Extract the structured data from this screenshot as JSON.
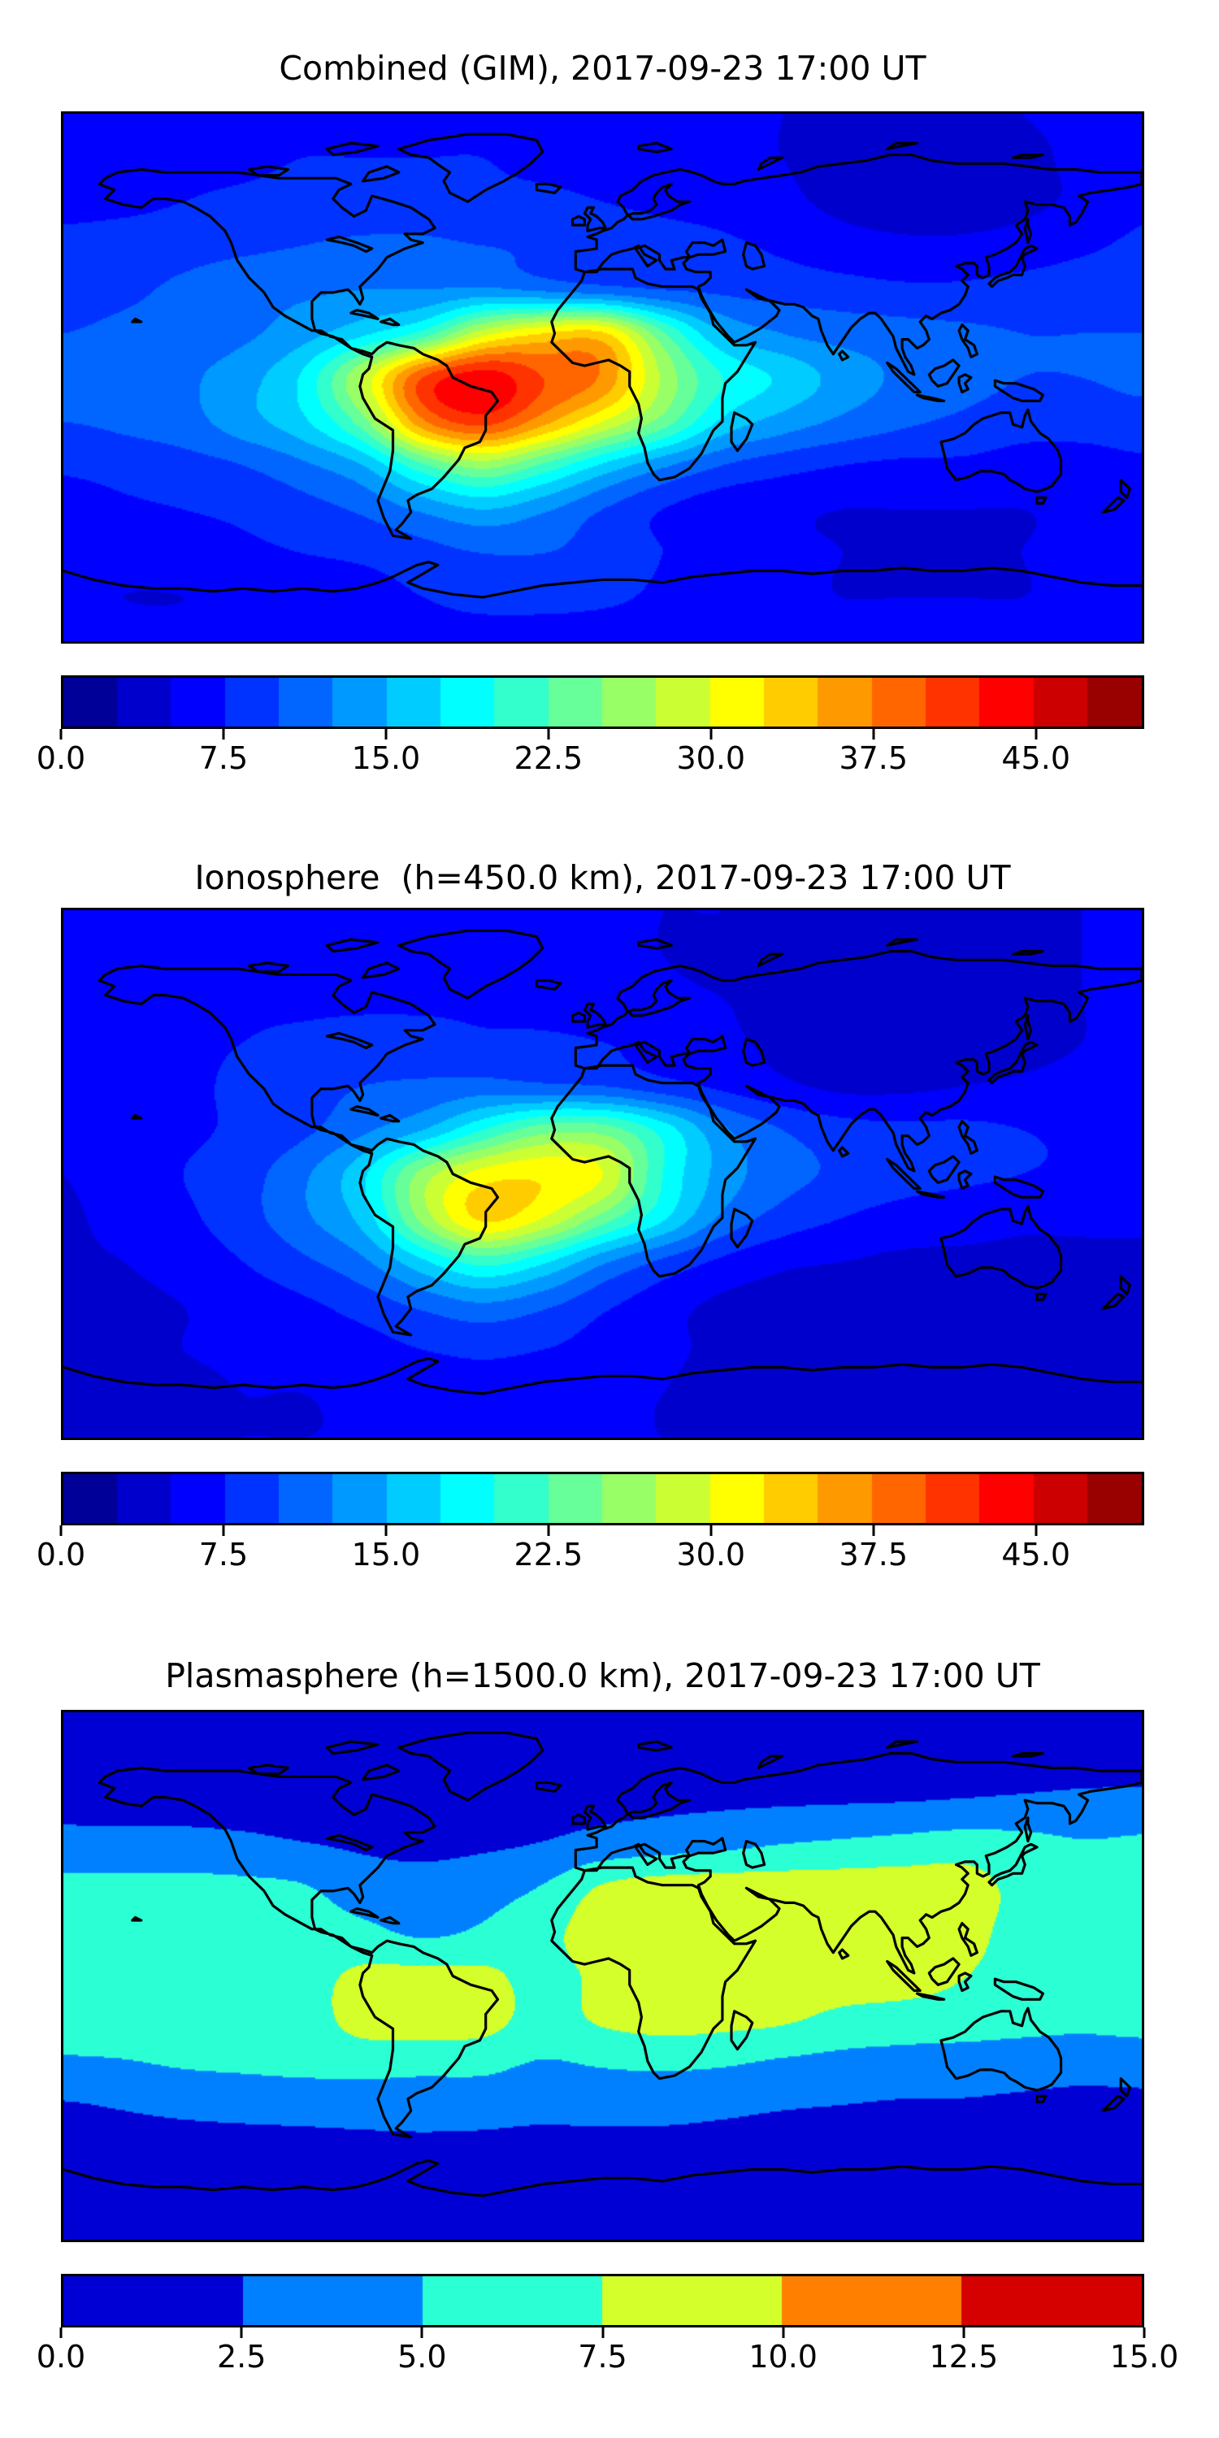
{
  "figure": {
    "background": "#ffffff",
    "panel_count": 3,
    "coastline_color": "#000000",
    "border_color": "#000000"
  },
  "chart_data": [
    {
      "type": "heatmap",
      "subtype": "filled-contour-world-map",
      "title": "Combined (GIM), 2017-09-23 17:00 UT",
      "projection": "equirectangular",
      "lon_range": [
        -180,
        180
      ],
      "lat_range": [
        -90,
        90
      ],
      "colormap": "jet",
      "vmin": 0,
      "vmax": 50,
      "contour_step": 2.5,
      "legend_position": "bottom-colorbar",
      "colorbar_ticks": [
        "0.0",
        "7.5",
        "15.0",
        "22.5",
        "30.0",
        "37.5",
        "45.0"
      ],
      "colorbar_tick_values": [
        0,
        7.5,
        15,
        22.5,
        30,
        37.5,
        45
      ],
      "grid": {
        "lons": [
          -180,
          -160,
          -140,
          -120,
          -100,
          -80,
          -60,
          -40,
          -20,
          0,
          20,
          40,
          60,
          80,
          100,
          120,
          140,
          160,
          180
        ],
        "lats": [
          90,
          75,
          60,
          45,
          30,
          15,
          0,
          -15,
          -30,
          -45,
          -60,
          -75,
          -90
        ],
        "values": [
          [
            6.5,
            6.5,
            6.5,
            7,
            7,
            7,
            7,
            7,
            7,
            6.5,
            6,
            5.5,
            5,
            4.5,
            4.5,
            4.5,
            5,
            5.5,
            6.5
          ],
          [
            6.5,
            6.5,
            7,
            7,
            7.5,
            7.5,
            7.5,
            7.5,
            7,
            6.5,
            6,
            5.5,
            5,
            4.5,
            4,
            4,
            4.5,
            5.5,
            6.5
          ],
          [
            7,
            7,
            7.5,
            8,
            8.5,
            8.5,
            8.5,
            8,
            8,
            7.5,
            7,
            6.5,
            5.5,
            4.5,
            4,
            4,
            4.5,
            5.5,
            7
          ],
          [
            8,
            8.5,
            9,
            9.5,
            10,
            10.5,
            10.5,
            10,
            9.5,
            9,
            8.5,
            8,
            7,
            6,
            5.5,
            5.5,
            6,
            7,
            8
          ],
          [
            9,
            9.5,
            10.5,
            11.5,
            12,
            12.5,
            12.5,
            13,
            12,
            11,
            10,
            9.5,
            9,
            8.5,
            8,
            8,
            8.5,
            9,
            9
          ],
          [
            10,
            10.5,
            11,
            12,
            14,
            17,
            21,
            29,
            32.5,
            33,
            23,
            15,
            12.5,
            11.5,
            11,
            10.5,
            10,
            10,
            10
          ],
          [
            11,
            11,
            12,
            14,
            18,
            28,
            40,
            44,
            40,
            37,
            27,
            20,
            17,
            14,
            12,
            11,
            10,
            10,
            10.5
          ],
          [
            10,
            10.5,
            11.5,
            14,
            17,
            24,
            37,
            41,
            36,
            30,
            24,
            17,
            14,
            12,
            10.5,
            9.5,
            8.5,
            8.5,
            9
          ],
          [
            8,
            8.5,
            9,
            10,
            12,
            15,
            22,
            26,
            22,
            17,
            13,
            10,
            8.5,
            7.5,
            7,
            7,
            6.5,
            6.5,
            7
          ],
          [
            6,
            7,
            7.5,
            8,
            9,
            10.5,
            13,
            15,
            13,
            10,
            7.5,
            6,
            5.5,
            5,
            5,
            5,
            5,
            5.5,
            6
          ],
          [
            5.5,
            6,
            6.5,
            7,
            7.5,
            8,
            9,
            10,
            10,
            9,
            7.5,
            6.5,
            5.5,
            5,
            4.5,
            4.5,
            5,
            5.5,
            5.5
          ],
          [
            5.5,
            5,
            5,
            5.5,
            6,
            6.5,
            7.5,
            8.5,
            8.5,
            8,
            7,
            6,
            5.5,
            5,
            5,
            5,
            5,
            5.5,
            5.5
          ],
          [
            6,
            6,
            6,
            6,
            6,
            6,
            6,
            6,
            6,
            6,
            6,
            6,
            6,
            6,
            6,
            6,
            6,
            6,
            6
          ]
        ]
      }
    },
    {
      "type": "heatmap",
      "subtype": "filled-contour-world-map",
      "title": "Ionosphere  (h=450.0 km), 2017-09-23 17:00 UT",
      "projection": "equirectangular",
      "lon_range": [
        -180,
        180
      ],
      "lat_range": [
        -90,
        90
      ],
      "colormap": "jet",
      "vmin": 0,
      "vmax": 50,
      "contour_step": 2.5,
      "legend_position": "bottom-colorbar",
      "colorbar_ticks": [
        "0.0",
        "7.5",
        "15.0",
        "22.5",
        "30.0",
        "37.5",
        "45.0"
      ],
      "colorbar_tick_values": [
        0,
        7.5,
        15,
        22.5,
        30,
        37.5,
        45
      ],
      "grid": {
        "lons": [
          -180,
          -160,
          -140,
          -120,
          -100,
          -80,
          -60,
          -40,
          -20,
          0,
          20,
          40,
          60,
          80,
          100,
          120,
          140,
          160,
          180
        ],
        "lats": [
          90,
          75,
          60,
          45,
          30,
          15,
          0,
          -15,
          -30,
          -45,
          -60,
          -75,
          -90
        ],
        "values": [
          [
            5.5,
            5.5,
            5.5,
            5.5,
            6,
            6,
            6,
            6,
            5.5,
            5.5,
            5,
            5,
            4.5,
            4.5,
            4.5,
            4.5,
            4.5,
            5,
            5.5
          ],
          [
            5.5,
            5.5,
            6,
            6,
            6.5,
            6.5,
            6.5,
            6.5,
            6,
            5.5,
            5,
            4.5,
            4.5,
            4,
            4,
            4,
            4.5,
            5,
            5.5
          ],
          [
            5.5,
            6,
            6.5,
            7,
            7,
            7,
            7,
            7,
            6.5,
            6,
            5.5,
            5,
            4.5,
            4,
            3.5,
            3.5,
            4,
            5,
            5.5
          ],
          [
            6,
            6.5,
            7,
            7.5,
            8,
            8.5,
            8.5,
            8,
            8,
            7.5,
            6.5,
            5.5,
            4.5,
            4,
            3.5,
            3.5,
            4,
            5,
            6
          ],
          [
            6,
            6.5,
            7,
            8,
            9,
            10,
            10.5,
            11,
            10.5,
            10,
            8.5,
            7,
            5.5,
            4.5,
            4.5,
            5,
            5.5,
            6,
            6
          ],
          [
            5.5,
            6,
            7,
            8,
            9.5,
            12,
            15,
            20,
            24,
            24,
            19,
            13,
            10,
            8.5,
            8,
            8,
            7.5,
            7,
            6.5
          ],
          [
            5,
            6.5,
            7.5,
            9,
            12,
            17,
            26,
            31,
            32,
            30,
            20,
            14,
            11,
            9.5,
            8.5,
            8,
            7.5,
            7,
            6.5
          ],
          [
            4.5,
            6,
            7,
            9,
            12,
            16,
            26,
            33,
            30,
            24,
            18,
            12,
            9,
            7.5,
            6.5,
            6,
            5.5,
            5.5,
            5.5
          ],
          [
            4.5,
            5,
            6,
            7.5,
            9.5,
            12,
            17,
            21,
            18,
            13,
            9.5,
            7,
            5.5,
            5,
            4.5,
            4.5,
            4.5,
            4.5,
            4.5
          ],
          [
            4,
            4.5,
            5,
            6,
            7,
            8.5,
            10.5,
            12,
            10.5,
            8,
            6,
            4.5,
            4,
            3.5,
            3.5,
            3.5,
            4,
            4,
            4
          ],
          [
            4,
            4.5,
            5,
            5.5,
            6,
            6.5,
            7.5,
            8,
            7.5,
            6.5,
            5.5,
            4.5,
            4,
            3.5,
            3.5,
            3.5,
            4,
            4,
            4
          ],
          [
            4.5,
            4.5,
            4.5,
            5,
            5,
            5.5,
            6,
            6.5,
            6,
            5.5,
            5,
            4.5,
            4.5,
            4,
            4,
            4,
            4,
            4.5,
            4.5
          ],
          [
            5,
            5,
            5,
            5,
            5,
            5,
            5,
            5,
            5,
            5,
            5,
            5,
            5,
            5,
            5,
            5,
            5,
            5,
            5
          ]
        ]
      }
    },
    {
      "type": "heatmap",
      "subtype": "filled-contour-world-map",
      "title": "Plasmasphere (h=1500.0 km), 2017-09-23 17:00 UT",
      "projection": "equirectangular",
      "lon_range": [
        -180,
        180
      ],
      "lat_range": [
        -90,
        90
      ],
      "colormap": "jet",
      "vmin": 0,
      "vmax": 15,
      "contour_step": 2.5,
      "legend_position": "bottom-colorbar",
      "colorbar_ticks": [
        "0.0",
        "2.5",
        "5.0",
        "7.5",
        "10.0",
        "12.5",
        "15.0"
      ],
      "colorbar_tick_values": [
        0,
        2.5,
        5,
        7.5,
        10,
        12.5,
        15
      ],
      "grid": {
        "lons": [
          -180,
          -160,
          -140,
          -120,
          -100,
          -80,
          -60,
          -40,
          -20,
          0,
          20,
          40,
          60,
          80,
          100,
          120,
          140,
          160,
          180
        ],
        "lats": [
          90,
          75,
          60,
          45,
          30,
          15,
          0,
          -15,
          -30,
          -45,
          -60,
          -75,
          -90
        ],
        "values": [
          [
            1.2,
            1.2,
            1.2,
            1.2,
            1.2,
            1.2,
            1.2,
            1.2,
            1.2,
            1.2,
            1.2,
            1.2,
            1.2,
            1.2,
            1.2,
            1.2,
            1.2,
            1.2,
            1.2
          ],
          [
            1.3,
            1.3,
            1.3,
            1.3,
            1.3,
            1.3,
            1.3,
            1.3,
            1.3,
            1.3,
            1.3,
            1.3,
            1.3,
            1.3,
            1.3,
            1.4,
            1.4,
            1.4,
            1.4
          ],
          [
            1.9,
            1.8,
            1.8,
            1.7,
            1.6,
            1.6,
            1.6,
            1.7,
            1.8,
            1.9,
            2.0,
            2.1,
            2.2,
            2.3,
            2.4,
            2.6,
            2.8,
            3.0,
            3.1
          ],
          [
            3.2,
            3.2,
            3.2,
            3.0,
            2.6,
            2.2,
            2.0,
            2.2,
            2.6,
            3.4,
            3.9,
            4.4,
            5.0,
            5.4,
            5.8,
            6.2,
            5.8,
            5.2,
            5.4
          ],
          [
            5.8,
            5.8,
            5.8,
            5.6,
            5.2,
            3.8,
            3.4,
            4.0,
            5.2,
            7.8,
            8.6,
            8.8,
            8.8,
            8.8,
            8.8,
            8.6,
            6.8,
            6.2,
            6.0
          ],
          [
            6.2,
            6.2,
            6.2,
            6.0,
            6.0,
            5.6,
            4.6,
            5.4,
            6.8,
            8.6,
            9.0,
            9.2,
            9.2,
            9.2,
            9.0,
            8.4,
            6.6,
            6.2,
            6.2
          ],
          [
            6.4,
            6.4,
            6.4,
            6.4,
            6.6,
            8.0,
            8.2,
            8.0,
            6.8,
            8.0,
            8.8,
            9.0,
            9.0,
            8.8,
            8.6,
            7.6,
            6.4,
            6.2,
            6.4
          ],
          [
            6.2,
            6.2,
            6.2,
            6.2,
            6.4,
            8.4,
            8.8,
            8.4,
            6.6,
            7.8,
            8.4,
            8.2,
            7.8,
            6.8,
            6.4,
            6.2,
            5.8,
            5.6,
            5.8
          ],
          [
            4.6,
            4.8,
            5.2,
            5.4,
            5.6,
            5.8,
            5.6,
            5.6,
            4.8,
            5.2,
            5.4,
            5.2,
            4.6,
            4.2,
            4.0,
            3.8,
            3.6,
            3.4,
            3.6
          ],
          [
            2.2,
            2.6,
            3.0,
            3.2,
            3.4,
            3.6,
            3.8,
            3.6,
            3.2,
            3.4,
            3.4,
            3.0,
            2.6,
            2.4,
            2.2,
            2.2,
            2.0,
            1.8,
            1.8
          ],
          [
            1.4,
            1.4,
            1.4,
            1.5,
            1.5,
            1.6,
            1.6,
            1.6,
            1.5,
            1.5,
            1.4,
            1.4,
            1.3,
            1.3,
            1.3,
            1.3,
            1.3,
            1.3,
            1.3
          ],
          [
            1.2,
            1.2,
            1.2,
            1.2,
            1.2,
            1.2,
            1.2,
            1.2,
            1.2,
            1.2,
            1.2,
            1.2,
            1.2,
            1.2,
            1.2,
            1.2,
            1.2,
            1.2,
            1.2
          ],
          [
            1.2,
            1.2,
            1.2,
            1.2,
            1.2,
            1.2,
            1.2,
            1.2,
            1.2,
            1.2,
            1.2,
            1.2,
            1.2,
            1.2,
            1.2,
            1.2,
            1.2,
            1.2,
            1.2
          ]
        ]
      }
    }
  ]
}
